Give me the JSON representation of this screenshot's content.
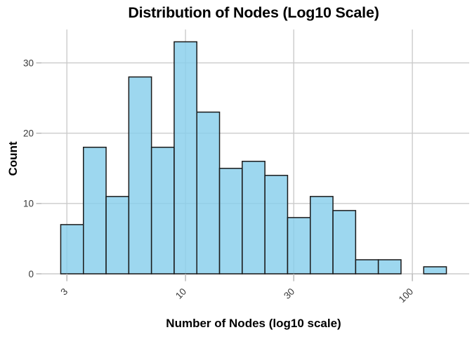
{
  "title": "Distribution of Nodes (Log10 Scale)",
  "axes": {
    "x_label": "Number of Nodes (log10 scale)",
    "y_label": "Count"
  },
  "chart_data": {
    "type": "bar",
    "subtype": "histogram",
    "title": "Distribution of Nodes (Log10 Scale)",
    "xlabel": "Number of Nodes (log10 scale)",
    "ylabel": "Count",
    "x_scale": "log10",
    "bin_edges_log10": [
      0.45,
      0.55,
      0.65,
      0.75,
      0.85,
      0.95,
      1.05,
      1.15,
      1.25,
      1.35,
      1.45,
      1.55,
      1.65,
      1.75,
      1.85,
      1.95,
      2.05,
      2.15
    ],
    "bin_edges_values": [
      2.82,
      3.55,
      4.47,
      5.62,
      7.08,
      8.91,
      11.22,
      14.13,
      17.78,
      22.39,
      28.18,
      35.48,
      44.67,
      56.23,
      70.79,
      89.13,
      112.2,
      141.25
    ],
    "counts": [
      7,
      18,
      11,
      28,
      18,
      33,
      23,
      15,
      16,
      14,
      8,
      11,
      9,
      2,
      2,
      0,
      1
    ],
    "x_ticks": [
      {
        "value": 3,
        "label": "3"
      },
      {
        "value": 10,
        "label": "10"
      },
      {
        "value": 30,
        "label": "30"
      },
      {
        "value": 100,
        "label": "100"
      }
    ],
    "y_ticks": [
      {
        "value": 0,
        "label": "0"
      },
      {
        "value": 10,
        "label": "10"
      },
      {
        "value": 20,
        "label": "20"
      },
      {
        "value": 30,
        "label": "30"
      }
    ],
    "xlim_log10": [
      0.365,
      2.235
    ],
    "ylim": [
      0,
      34.65
    ],
    "grid": true,
    "legend": null,
    "colors": {
      "bar_fill": "rgba(135,206,235,0.82)",
      "bar_edge": "#1a1a1a",
      "grid_color": "#cbcbcb",
      "tick_color": "#b5b5b5",
      "tick_label_color": "#3a3a3a",
      "text_color": "#000000",
      "background": "#ffffff"
    }
  }
}
